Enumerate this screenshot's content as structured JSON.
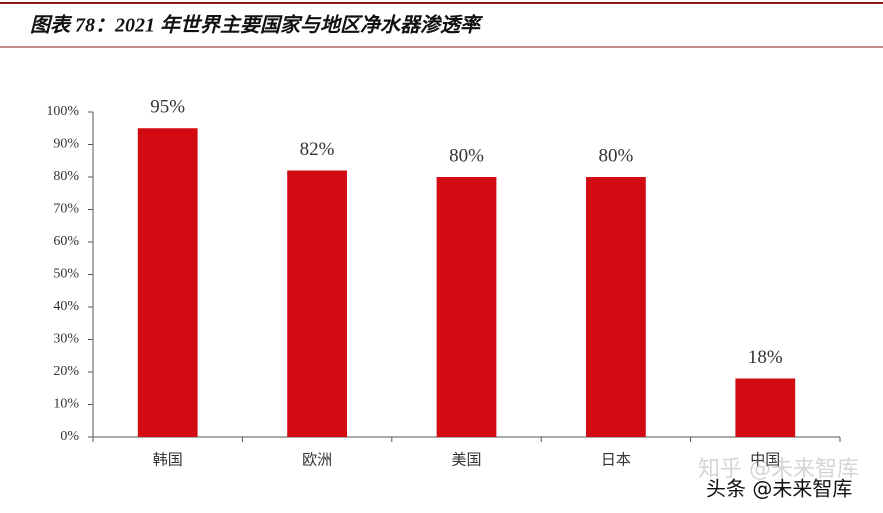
{
  "chart_data": {
    "type": "bar",
    "title": "图表 78：2021 年世界主要国家与地区净水器渗透率",
    "categories": [
      "韩国",
      "欧洲",
      "美国",
      "日本",
      "中国"
    ],
    "values": [
      95,
      82,
      80,
      80,
      18
    ],
    "value_labels": [
      "95%",
      "82%",
      "80%",
      "80%",
      "18%"
    ],
    "color": "#d20a12",
    "ylim": [
      0,
      100
    ],
    "yticks": [
      {
        "value": 0,
        "label": "0%"
      },
      {
        "value": 10,
        "label": "10%"
      },
      {
        "value": 20,
        "label": "20%"
      },
      {
        "value": 30,
        "label": "30%"
      },
      {
        "value": 40,
        "label": "40%"
      },
      {
        "value": 50,
        "label": "50%"
      },
      {
        "value": 60,
        "label": "60%"
      },
      {
        "value": 70,
        "label": "70%"
      },
      {
        "value": 80,
        "label": "80%"
      },
      {
        "value": 90,
        "label": "90%"
      },
      {
        "value": 100,
        "label": "100%"
      }
    ],
    "grid": false,
    "watermarks": [
      "知乎 @未来智库",
      "头条 @未来智库"
    ]
  }
}
